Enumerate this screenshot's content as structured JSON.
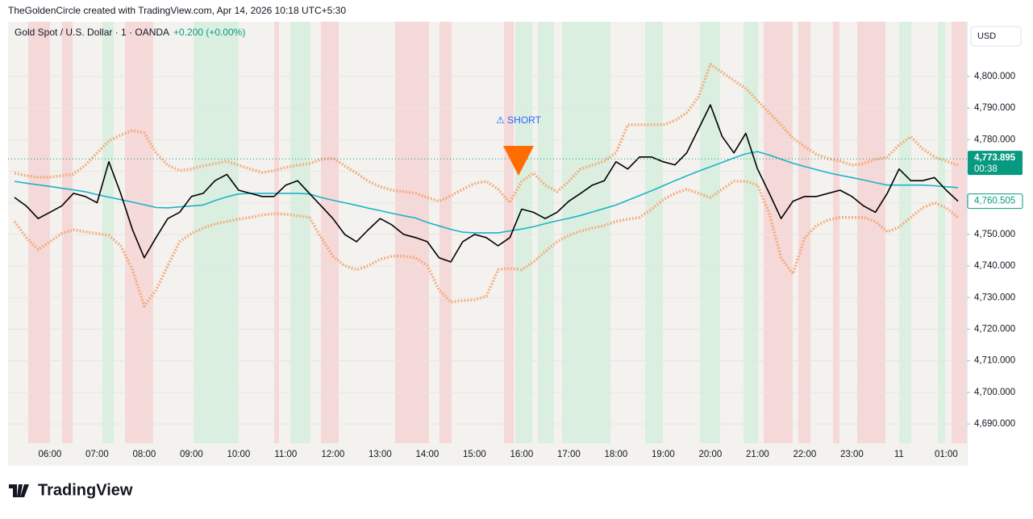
{
  "header": "TheGoldenCircle created with TradingView.com, Apr 14, 2026 10:18 UTC+5:30",
  "footer": "TradingView",
  "chart_data": {
    "type": "line",
    "symbol": "Gold Spot / U.S. Dollar · 1 · OANDA",
    "change": "+0.200 (+0.00%)",
    "currency": "USD",
    "annotation": "⚠ SHORT",
    "last_price": {
      "value": 4773.895,
      "label": "4,773.895"
    },
    "countdown": "00:38",
    "ma_price": {
      "value": 4760.505,
      "label": "4,760.505"
    },
    "categories": [
      null,
      null,
      null,
      "06:00",
      null,
      null,
      null,
      "07:00",
      null,
      null,
      null,
      "08:00",
      null,
      null,
      null,
      "09:00",
      null,
      null,
      null,
      "10:00",
      null,
      null,
      null,
      "11:00",
      null,
      null,
      null,
      "12:00",
      null,
      null,
      null,
      "13:00",
      null,
      null,
      null,
      "14:00",
      null,
      null,
      null,
      "15:00",
      null,
      null,
      null,
      "16:00",
      null,
      null,
      null,
      "17:00",
      null,
      null,
      null,
      "18:00",
      null,
      null,
      null,
      "19:00",
      null,
      null,
      null,
      "20:00",
      null,
      null,
      null,
      "21:00",
      null,
      null,
      null,
      "22:00",
      null,
      null,
      null,
      "23:00",
      null,
      null,
      null,
      "11",
      null,
      null,
      null,
      "01:00",
      null
    ],
    "series": [
      {
        "color": "#f4a46e",
        "style": "dotted",
        "values": [
          4769.4,
          4768.6,
          4768.1,
          4768.1,
          4768.6,
          4769.1,
          4771.9,
          4775.8,
          4779.6,
          4781.4,
          4782.9,
          4782.1,
          4775.8,
          4771.9,
          4770.2,
          4770.7,
          4771.7,
          4772.4,
          4773.2,
          4771.9,
          4770.7,
          4769.6,
          4770.2,
          4771.2,
          4771.9,
          4772.4,
          4773.7,
          4774.2,
          4771.7,
          4769.4,
          4766.8,
          4765.1,
          4764,
          4763.5,
          4763,
          4761.7,
          4760.5,
          4762.2,
          4764.3,
          4766.1,
          4766.8,
          4764.3,
          4760,
          4766.8,
          4769.4,
          4765.6,
          4763.5,
          4766.8,
          4770.7,
          4771.9,
          4773.2,
          4775.8,
          4784.7,
          4784.7,
          4784.7,
          4784.7,
          4786,
          4788.5,
          4793.6,
          4803.8,
          4801.3,
          4798.7,
          4796.2,
          4792.3,
          4788.5,
          4784.7,
          4780.4,
          4777.8,
          4775.3,
          4774,
          4773.2,
          4771.9,
          4772.4,
          4773.7,
          4774.5,
          4778.3,
          4780.9,
          4777.1,
          4774.5,
          4773.2,
          4771.9
        ]
      },
      {
        "color": "#f4a46e",
        "style": "dotted",
        "values": [
          4754.1,
          4749,
          4745.2,
          4747.7,
          4750.3,
          4751.5,
          4750.8,
          4750.3,
          4749.7,
          4746.4,
          4738.8,
          4727.3,
          4732.4,
          4740.1,
          4747.7,
          4750.3,
          4752,
          4753.3,
          4754.1,
          4754.8,
          4755.4,
          4756.1,
          4756.6,
          4756.4,
          4755.9,
          4755.4,
          4749,
          4743.1,
          4740.1,
          4738.8,
          4740.1,
          4742.1,
          4743.1,
          4743.1,
          4742.6,
          4740.1,
          4732.4,
          4728.6,
          4729.1,
          4729.3,
          4730.4,
          4738.8,
          4739.3,
          4738.8,
          4741.3,
          4744.6,
          4747.7,
          4749.7,
          4751,
          4752,
          4752.8,
          4754.1,
          4754.8,
          4755.4,
          4757.9,
          4761,
          4763,
          4764.3,
          4763,
          4761.7,
          4764.3,
          4766.8,
          4766.8,
          4765.6,
          4756.6,
          4742.6,
          4737.5,
          4749,
          4752.8,
          4754.6,
          4755.4,
          4755.4,
          4755.4,
          4754.1,
          4750.8,
          4752.3,
          4755.4,
          4758.4,
          4760,
          4758.4,
          4755.4
        ]
      },
      {
        "color": "#1cb3c8",
        "style": "solid",
        "values": [
          4766.8,
          4766.2,
          4765.7,
          4765.2,
          4764.6,
          4764.1,
          4763.5,
          4762.6,
          4761.8,
          4761,
          4760.2,
          4759.4,
          4758.5,
          4758.4,
          4758.7,
          4759,
          4759.3,
          4760.7,
          4761.9,
          4762.8,
          4763,
          4763,
          4763,
          4763,
          4763,
          4762.8,
          4761.7,
          4760.8,
          4760,
          4759.2,
          4758.3,
          4757.5,
          4756.7,
          4755.9,
          4755.2,
          4753.8,
          4752.7,
          4751.6,
          4750.7,
          4750.5,
          4750.5,
          4750.5,
          4751.1,
          4751.7,
          4752.4,
          4753.4,
          4754.3,
          4755.1,
          4756,
          4757.1,
          4758.2,
          4759.3,
          4760.8,
          4762.3,
          4763.8,
          4765.4,
          4767,
          4768.5,
          4770,
          4771.4,
          4772.8,
          4774.2,
          4775.5,
          4776.2,
          4775.1,
          4773.8,
          4772.5,
          4771.5,
          4770.5,
          4769.5,
          4768.7,
          4768,
          4767.2,
          4766.4,
          4765.6,
          4765.6,
          4765.6,
          4765.6,
          4765.4,
          4765.1,
          4764.8
        ]
      },
      {
        "color": "#000000",
        "style": "solid",
        "values": [
          4761.7,
          4759,
          4755,
          4757,
          4759,
          4763,
          4762,
          4760,
          4773,
          4763,
          4751.5,
          4742.6,
          4749,
          4755,
          4757,
          4762,
          4763,
          4767,
          4769,
          4764,
          4763,
          4762,
          4762,
          4765.6,
          4767,
          4763,
          4759,
          4755,
          4750,
          4747.7,
          4751.5,
          4755,
          4753,
          4750,
          4749,
          4747.7,
          4742.6,
          4741.3,
          4747.7,
          4750,
          4749,
          4746.4,
          4749,
          4758,
          4757,
          4755,
          4757,
          4760.5,
          4763,
          4765.6,
          4767,
          4773,
          4770.7,
          4774.5,
          4774.5,
          4773,
          4772,
          4775.8,
          4783.4,
          4791,
          4781,
          4775.8,
          4782,
          4770.7,
          4763,
          4755,
          4760.5,
          4762,
          4762,
          4763,
          4764,
          4762,
          4759,
          4757,
          4763,
          4770.7,
          4767,
          4767,
          4768,
          4764,
          4760.5
        ]
      }
    ],
    "ylim": [
      4683.9,
      4817.3
    ],
    "yticks": [
      {
        "value": 4690,
        "label": "4,690.000"
      },
      {
        "value": 4700,
        "label": "4,700.000"
      },
      {
        "value": 4710,
        "label": "4,710.000"
      },
      {
        "value": 4720,
        "label": "4,720.000"
      },
      {
        "value": 4730,
        "label": "4,730.000"
      },
      {
        "value": 4740,
        "label": "4,740.000"
      },
      {
        "value": 4750,
        "label": "4,750.000"
      },
      {
        "value": 4760,
        "label": "4,760.000"
      },
      {
        "value": 4770,
        "label": "4,770.000"
      },
      {
        "value": 4780,
        "label": "4,780.000"
      },
      {
        "value": 4790,
        "label": "4,790.000"
      },
      {
        "value": 4800,
        "label": "4,800.000"
      }
    ],
    "grid": true
  }
}
